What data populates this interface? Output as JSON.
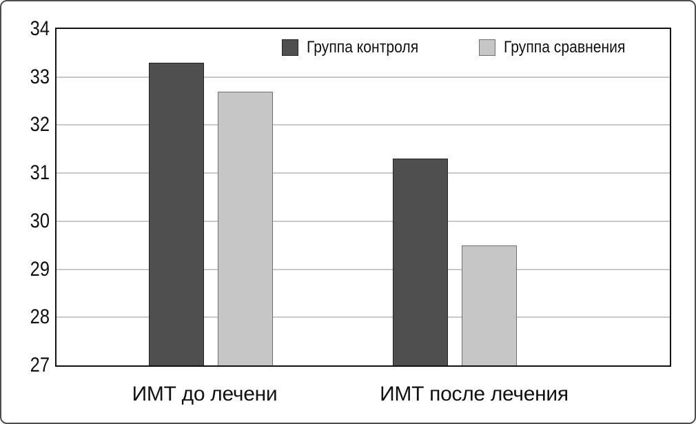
{
  "chart_data": {
    "type": "bar",
    "categories": [
      "ИМТ до лечени",
      "ИМТ после лечения"
    ],
    "series": [
      {
        "name": "Группа контроля",
        "values": [
          33.3,
          31.3
        ],
        "color": "#4f4f4f",
        "border_color": "#222222"
      },
      {
        "name": "Группа сравнения",
        "values": [
          32.7,
          29.5
        ],
        "color": "#c6c6c6",
        "border_color": "#6e6e6e"
      }
    ],
    "title": "",
    "xlabel": "",
    "ylabel": "",
    "ylim": [
      27,
      34
    ],
    "yticks": [
      27,
      28,
      29,
      30,
      31,
      32,
      33,
      34
    ],
    "grid": true,
    "legend_position": "top-inside",
    "background": "#ffffff",
    "frame_color": "#4d4d4d",
    "plot_border_color": "#111111",
    "gridline_color": "#c9c9c9"
  }
}
